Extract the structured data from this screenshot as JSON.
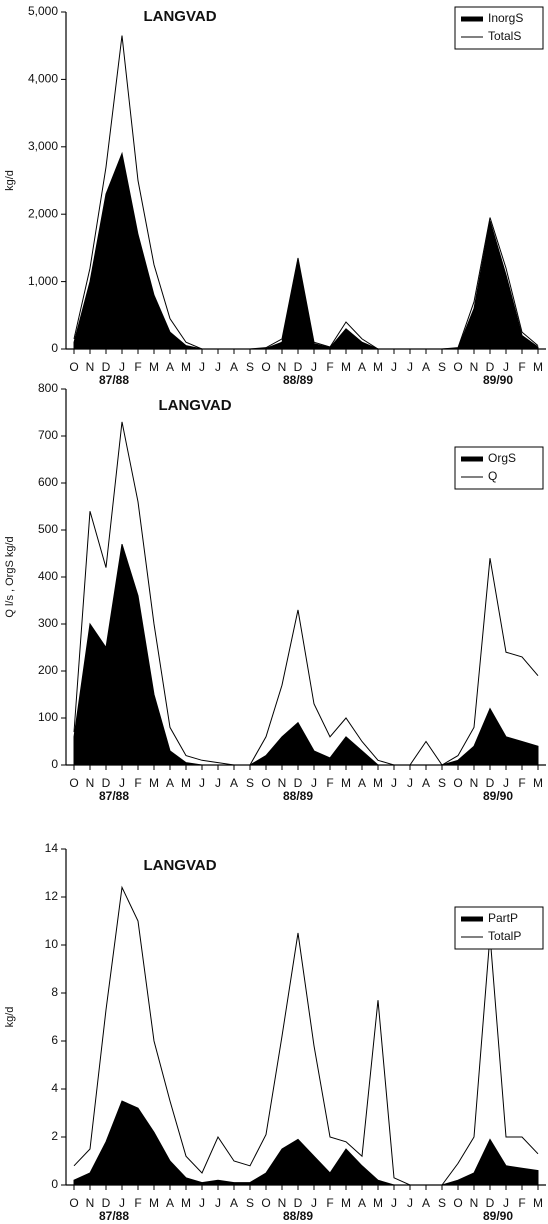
{
  "chart_data": [
    {
      "type": "area-line",
      "title": "LANGVAD",
      "ylabel": "kg/d",
      "categories": [
        "O",
        "N",
        "D",
        "J",
        "F",
        "M",
        "A",
        "M",
        "J",
        "J",
        "A",
        "S",
        "O",
        "N",
        "D",
        "J",
        "F",
        "M",
        "A",
        "M",
        "J",
        "J",
        "A",
        "S",
        "O",
        "N",
        "D",
        "J",
        "F",
        "M"
      ],
      "group_labels": [
        "87/88",
        "88/89",
        "89/90"
      ],
      "ylim": [
        0,
        5000
      ],
      "yticks": [
        0,
        {
          "value": 1000,
          "label": "1,000"
        },
        {
          "value": 2000,
          "label": "2,000"
        },
        {
          "value": 3000,
          "label": "3,000"
        },
        {
          "value": 4000,
          "label": "4,000"
        },
        {
          "value": 5000,
          "label": "5,000"
        }
      ],
      "legend": "upper right",
      "series": [
        {
          "name": "InorgS",
          "color": "#000000",
          "style": "area",
          "values": [
            100,
            1000,
            2300,
            2900,
            1700,
            800,
            250,
            50,
            0,
            0,
            0,
            0,
            10,
            100,
            1300,
            80,
            20,
            300,
            100,
            0,
            0,
            0,
            0,
            0,
            10,
            600,
            1900,
            1100,
            200,
            30
          ]
        },
        {
          "name": "TotalS",
          "color": "#000000",
          "style": "line",
          "values": [
            150,
            1200,
            2700,
            4650,
            2500,
            1250,
            450,
            100,
            0,
            0,
            0,
            0,
            20,
            150,
            1350,
            100,
            30,
            400,
            150,
            0,
            0,
            0,
            0,
            0,
            20,
            700,
            1950,
            1200,
            250,
            50
          ]
        }
      ]
    },
    {
      "type": "area-line",
      "title": "LANGVAD",
      "ylabel": "Q l/s , OrgS kg/d",
      "categories": [
        "O",
        "N",
        "D",
        "J",
        "F",
        "M",
        "A",
        "M",
        "J",
        "J",
        "A",
        "S",
        "O",
        "N",
        "D",
        "J",
        "F",
        "M",
        "A",
        "M",
        "J",
        "J",
        "A",
        "S",
        "O",
        "N",
        "D",
        "J",
        "F",
        "M"
      ],
      "group_labels": [
        "87/88",
        "88/89",
        "89/90"
      ],
      "ylim": [
        0,
        800
      ],
      "yticks": [
        0,
        100,
        200,
        300,
        400,
        500,
        600,
        700,
        800
      ],
      "legend": "upper right",
      "series": [
        {
          "name": "OrgS",
          "color": "#000000",
          "style": "area",
          "values": [
            60,
            300,
            250,
            470,
            360,
            150,
            30,
            5,
            0,
            0,
            0,
            0,
            20,
            60,
            90,
            30,
            15,
            60,
            30,
            0,
            0,
            0,
            0,
            0,
            10,
            40,
            120,
            60,
            50,
            40
          ]
        },
        {
          "name": "Q",
          "color": "#000000",
          "style": "line",
          "values": [
            70,
            540,
            420,
            730,
            560,
            300,
            80,
            20,
            10,
            5,
            0,
            0,
            60,
            170,
            330,
            130,
            60,
            100,
            50,
            10,
            0,
            0,
            50,
            0,
            20,
            80,
            440,
            240,
            230,
            190
          ]
        }
      ]
    },
    {
      "type": "area-line",
      "title": "LANGVAD",
      "ylabel": "kg/d",
      "categories": [
        "O",
        "N",
        "D",
        "J",
        "F",
        "M",
        "A",
        "M",
        "J",
        "J",
        "A",
        "S",
        "O",
        "N",
        "D",
        "J",
        "F",
        "M",
        "A",
        "M",
        "J",
        "J",
        "A",
        "S",
        "O",
        "N",
        "D",
        "J",
        "F",
        "M"
      ],
      "group_labels": [
        "87/88",
        "88/89",
        "89/90"
      ],
      "ylim": [
        0,
        14
      ],
      "yticks": [
        0,
        2,
        4,
        6,
        8,
        10,
        12,
        14
      ],
      "legend": "upper right",
      "series": [
        {
          "name": "PartP",
          "color": "#000000",
          "style": "area",
          "values": [
            0.2,
            0.5,
            1.8,
            3.5,
            3.2,
            2.2,
            1.0,
            0.3,
            0.1,
            0.2,
            0.1,
            0.1,
            0.5,
            1.5,
            1.9,
            1.2,
            0.5,
            1.5,
            0.8,
            0.2,
            0,
            0,
            0,
            0,
            0.2,
            0.5,
            1.9,
            0.8,
            0.7,
            0.6
          ]
        },
        {
          "name": "TotalP",
          "color": "#000000",
          "style": "line",
          "values": [
            0.8,
            1.5,
            7.3,
            12.4,
            11,
            6,
            3.5,
            1.2,
            0.5,
            2,
            1,
            0.8,
            2.1,
            6.2,
            10.5,
            5.8,
            2,
            1.8,
            1.2,
            7.7,
            0.3,
            0,
            0,
            0,
            0.9,
            2,
            10.4,
            2,
            2,
            1.3
          ]
        }
      ]
    }
  ]
}
